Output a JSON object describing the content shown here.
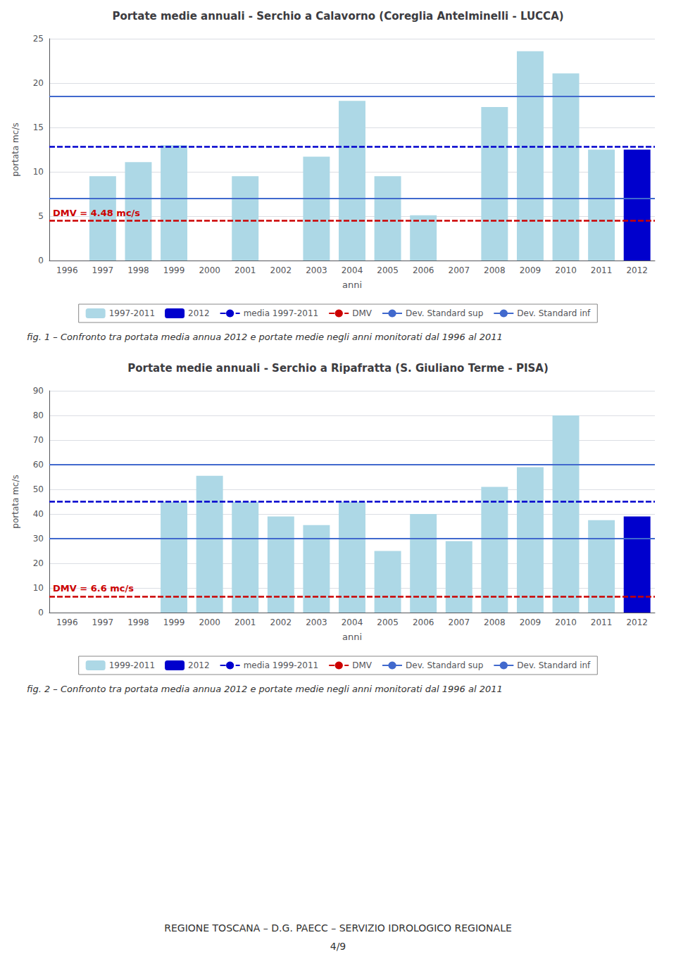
{
  "chart_data": [
    {
      "type": "bar",
      "title": "Portate medie annuali - Serchio a Calavorno (Coreglia Antelminelli - LUCCA)",
      "xlabel": "anni",
      "ylabel": "portata mc/s",
      "categories": [
        "1996",
        "1997",
        "1998",
        "1999",
        "2000",
        "2001",
        "2002",
        "2003",
        "2004",
        "2005",
        "2006",
        "2007",
        "2008",
        "2009",
        "2010",
        "2011",
        "2012"
      ],
      "series": [
        {
          "name": "1997-2011",
          "type": "bar",
          "color": "#ADD8E6",
          "values": [
            0,
            9.5,
            11.1,
            13.0,
            0,
            9.5,
            0,
            11.7,
            18.0,
            9.5,
            5.1,
            0,
            17.3,
            23.6,
            21.1,
            12.5,
            null
          ]
        },
        {
          "name": "2012",
          "type": "bar",
          "color": "#0000CD",
          "values": [
            null,
            null,
            null,
            null,
            null,
            null,
            null,
            null,
            null,
            null,
            null,
            null,
            null,
            null,
            null,
            null,
            12.5
          ]
        },
        {
          "name": "media 1997-2011",
          "type": "hline",
          "color": "#0000CD",
          "line_style": "dashed",
          "value": 12.8
        },
        {
          "name": "DMV",
          "type": "hline",
          "color": "#CC0000",
          "line_style": "dashed",
          "value": 4.48,
          "annotation": "DMV = 4.48 mc/s"
        },
        {
          "name": "Dev. Standard sup",
          "type": "hline",
          "color": "#4169CD",
          "line_style": "solid",
          "value": 18.5
        },
        {
          "name": "Dev. Standard inf",
          "type": "hline",
          "color": "#4169CD",
          "line_style": "solid",
          "value": 7.0
        }
      ],
      "ylim": [
        0,
        25
      ],
      "yticks": [
        0,
        5,
        10,
        15,
        20,
        25
      ],
      "grid": true,
      "legend": "bottom",
      "caption": "fig. 1 – Confronto tra portata media annua 2012 e portate medie negli anni monitorati dal 1996 al 2011"
    },
    {
      "type": "bar",
      "title": "Portate medie annuali - Serchio a Ripafratta (S. Giuliano Terme - PISA)",
      "xlabel": "anni",
      "ylabel": "portata mc/s",
      "categories": [
        "1996",
        "1997",
        "1998",
        "1999",
        "2000",
        "2001",
        "2002",
        "2003",
        "2004",
        "2005",
        "2006",
        "2007",
        "2008",
        "2009",
        "2010",
        "2011",
        "2012"
      ],
      "series": [
        {
          "name": "1999-2011",
          "type": "bar",
          "color": "#ADD8E6",
          "values": [
            0,
            0,
            0,
            45.0,
            55.5,
            45.0,
            39.0,
            35.5,
            45.0,
            25.0,
            40.0,
            29.0,
            51.0,
            59.0,
            80.0,
            37.5,
            null
          ]
        },
        {
          "name": "2012",
          "type": "bar",
          "color": "#0000CD",
          "values": [
            null,
            null,
            null,
            null,
            null,
            null,
            null,
            null,
            null,
            null,
            null,
            null,
            null,
            null,
            null,
            null,
            39.0
          ]
        },
        {
          "name": "media 1999-2011",
          "type": "hline",
          "color": "#0000CD",
          "line_style": "dashed",
          "value": 45.0
        },
        {
          "name": "DMV",
          "type": "hline",
          "color": "#CC0000",
          "line_style": "dashed",
          "value": 6.6,
          "annotation": "DMV = 6.6 mc/s"
        },
        {
          "name": "Dev. Standard sup",
          "type": "hline",
          "color": "#4169CD",
          "line_style": "solid",
          "value": 60.0
        },
        {
          "name": "Dev. Standard inf",
          "type": "hline",
          "color": "#4169CD",
          "line_style": "solid",
          "value": 30.0
        }
      ],
      "ylim": [
        0,
        90
      ],
      "yticks": [
        0,
        10,
        20,
        30,
        40,
        50,
        60,
        70,
        80,
        90
      ],
      "grid": true,
      "legend": "bottom",
      "caption": "fig. 2 – Confronto tra portata media annua 2012 e portate medie negli anni monitorati dal 1996 al 2011"
    }
  ],
  "footer": [
    "REGIONE TOSCANA – D.G. PAECC – SERVIZIO IDROLOGICO REGIONALE",
    "4/9"
  ]
}
